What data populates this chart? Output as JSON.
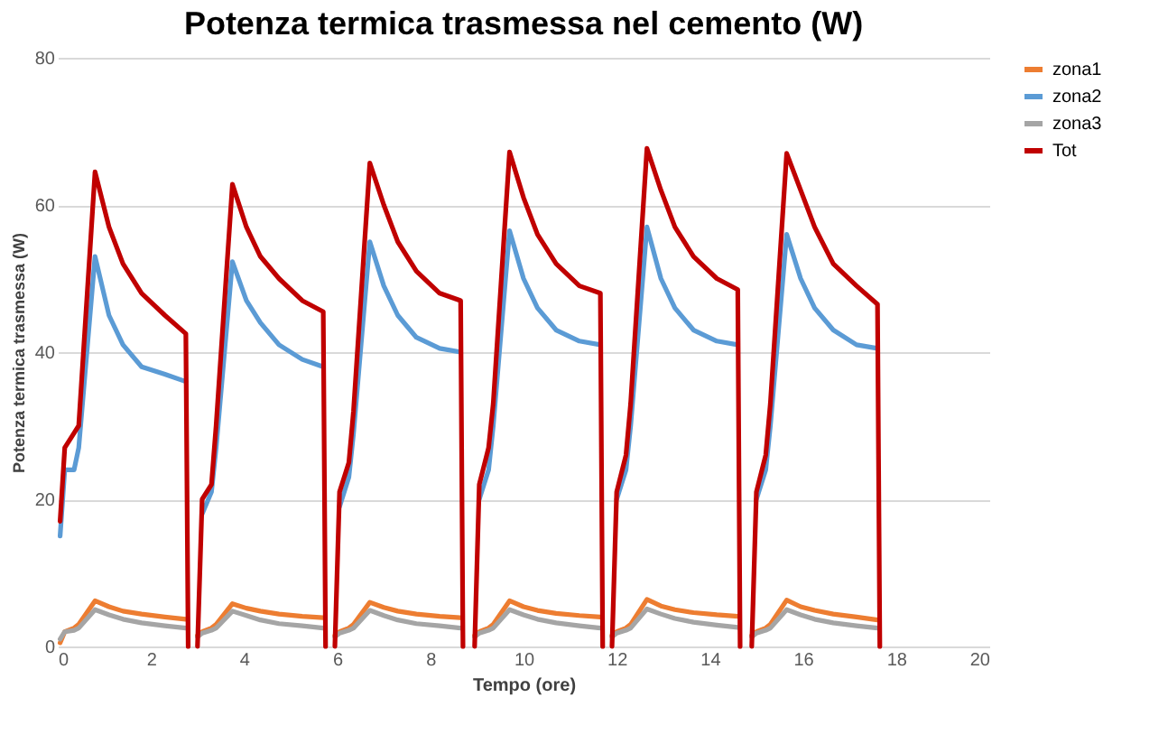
{
  "chart_data": {
    "type": "line",
    "title": "Potenza termica trasmessa nel cemento (W)",
    "xlabel": "Tempo (ore)",
    "ylabel": "Potenza termica trasmessa (W)",
    "x": [
      0.05,
      0.15,
      0.35,
      0.45,
      0.8,
      1.1,
      1.4,
      1.8,
      2.3,
      2.75,
      2.8,
      2.9,
      3.0,
      3.1,
      3.3,
      3.4,
      3.75,
      4.05,
      4.35,
      4.75,
      5.25,
      5.7,
      5.75,
      5.85,
      5.95,
      6.05,
      6.25,
      6.35,
      6.7,
      7.0,
      7.3,
      7.7,
      8.2,
      8.65,
      8.7,
      8.8,
      8.95,
      9.05,
      9.25,
      9.35,
      9.7,
      10.0,
      10.3,
      10.7,
      11.2,
      11.65,
      11.7,
      11.8,
      11.9,
      12.0,
      12.2,
      12.3,
      12.65,
      12.95,
      13.25,
      13.65,
      14.15,
      14.6,
      14.65,
      14.75,
      14.9,
      15.0,
      15.2,
      15.3,
      15.65,
      15.95,
      16.25,
      16.65,
      17.15,
      17.6,
      17.65
    ],
    "series": [
      {
        "name": "zona1",
        "color": "#ed7d31",
        "values": [
          0.5,
          2,
          2.5,
          3,
          6.2,
          5.4,
          4.8,
          4.4,
          4,
          3.7,
          null,
          null,
          1.5,
          2,
          2.5,
          3,
          5.8,
          5.2,
          4.8,
          4.4,
          4.1,
          3.9,
          null,
          null,
          1.5,
          2,
          2.5,
          3,
          6,
          5.3,
          4.8,
          4.4,
          4.1,
          3.9,
          null,
          null,
          1.5,
          2,
          2.5,
          3,
          6.2,
          5.4,
          4.9,
          4.5,
          4.2,
          4,
          null,
          null,
          1.5,
          2,
          2.5,
          3,
          6.4,
          5.5,
          5,
          4.6,
          4.3,
          4.1,
          null,
          null,
          1.5,
          2,
          2.5,
          3,
          6.3,
          5.4,
          4.9,
          4.4,
          4,
          3.6,
          null
        ]
      },
      {
        "name": "zona2",
        "color": "#5b9bd5",
        "values": [
          15,
          24,
          24,
          27,
          53,
          45,
          41,
          38,
          37,
          36,
          null,
          null,
          null,
          18,
          21,
          27,
          52.3,
          47,
          44,
          41,
          39,
          38,
          null,
          null,
          null,
          19,
          23,
          29,
          55,
          49,
          45,
          42,
          40.5,
          40,
          null,
          null,
          null,
          20,
          24,
          30,
          56.5,
          50,
          46,
          43,
          41.5,
          41,
          null,
          null,
          null,
          20,
          24,
          30,
          57,
          50,
          46,
          43,
          41.5,
          41,
          null,
          null,
          null,
          20,
          24,
          30,
          56,
          50,
          46,
          43,
          41,
          40.5,
          null
        ]
      },
      {
        "name": "zona3",
        "color": "#a5a5a5",
        "values": [
          1,
          2,
          2.2,
          2.5,
          5,
          4.3,
          3.7,
          3.2,
          2.8,
          2.5,
          null,
          null,
          1.3,
          1.8,
          2.2,
          2.5,
          4.8,
          4.2,
          3.6,
          3.1,
          2.8,
          2.5,
          null,
          null,
          1.3,
          1.8,
          2.2,
          2.5,
          4.9,
          4.2,
          3.6,
          3.1,
          2.8,
          2.5,
          null,
          null,
          1.3,
          1.8,
          2.2,
          2.5,
          5,
          4.3,
          3.7,
          3.2,
          2.8,
          2.5,
          null,
          null,
          1.3,
          1.8,
          2.2,
          2.5,
          5.1,
          4.4,
          3.8,
          3.3,
          2.9,
          2.6,
          null,
          null,
          1.3,
          1.8,
          2.2,
          2.5,
          5,
          4.3,
          3.7,
          3.2,
          2.8,
          2.5,
          null
        ]
      },
      {
        "name": "Tot",
        "color": "#c00000",
        "values": [
          17,
          27,
          29,
          30,
          64.5,
          57,
          52,
          48,
          45,
          42.5,
          0,
          null,
          0,
          20,
          22,
          30,
          62.8,
          57,
          53,
          50,
          47,
          45.5,
          0,
          null,
          0,
          21,
          25,
          32,
          65.7,
          60,
          55,
          51,
          48,
          47,
          0,
          null,
          0,
          22,
          27,
          33,
          67.2,
          61,
          56,
          52,
          49,
          48,
          0,
          null,
          0,
          21,
          26,
          33,
          67.7,
          62,
          57,
          53,
          50,
          48.5,
          0,
          null,
          0,
          21,
          26,
          33,
          67,
          62,
          57,
          52,
          49,
          46.5,
          0
        ]
      }
    ],
    "xlim": [
      0,
      20
    ],
    "xticks": [
      0,
      2,
      4,
      6,
      8,
      10,
      12,
      14,
      16,
      18,
      20
    ],
    "ylim": [
      0,
      80
    ],
    "yticks": [
      0,
      20,
      40,
      60,
      80
    ],
    "grid": "y",
    "legend": "right",
    "marker": "none",
    "line_style": "solid"
  }
}
